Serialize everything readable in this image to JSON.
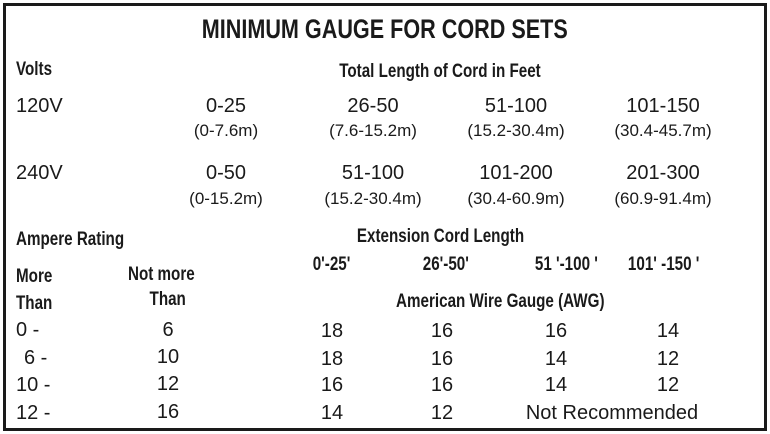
{
  "title": "MINIMUM GAUGE FOR CORD SETS",
  "volts_label": "Volts",
  "total_length_label": "Total Length of Cord in Feet",
  "voltage_rows": [
    {
      "volts": "120V",
      "ranges": [
        {
          "ft": "0-25",
          "m": "(0-7.6m)"
        },
        {
          "ft": "26-50",
          "m": "(7.6-15.2m)"
        },
        {
          "ft": "51-100",
          "m": "(15.2-30.4m)"
        },
        {
          "ft": "101-150",
          "m": "(30.4-45.7m)"
        }
      ]
    },
    {
      "volts": "240V",
      "ranges": [
        {
          "ft": "0-50",
          "m": "(0-15.2m)"
        },
        {
          "ft": "51-100",
          "m": "(15.2-30.4m)"
        },
        {
          "ft": "101-200",
          "m": "(30.4-60.9m)"
        },
        {
          "ft": "201-300",
          "m": "(60.9-91.4m)"
        }
      ]
    }
  ],
  "ampere_rating_label": "Ampere Rating",
  "extension_cord_length_label": "Extension Cord Length",
  "more_label": "More",
  "than_label": "Than",
  "not_more_label": "Not more",
  "not_more_than_label": "Than",
  "cord_lengths": [
    "0'-25'",
    "26'-50'",
    "51 '-100 '",
    "101' -150 '"
  ],
  "awg_label": "American Wire Gauge (AWG)",
  "awg_rows": [
    {
      "more_than": "0 -",
      "not_more_than": "6",
      "gauges": [
        "18",
        "16",
        "16",
        "14"
      ]
    },
    {
      "more_than": "6 -",
      "not_more_than": "10",
      "gauges": [
        "18",
        "16",
        "14",
        "12"
      ]
    },
    {
      "more_than": "10 -",
      "not_more_than": "12",
      "gauges": [
        "16",
        "16",
        "14",
        "12"
      ]
    },
    {
      "more_than": "12 -",
      "not_more_than": "16",
      "gauges": [
        "14",
        "12"
      ],
      "note": "Not Recommended"
    }
  ]
}
